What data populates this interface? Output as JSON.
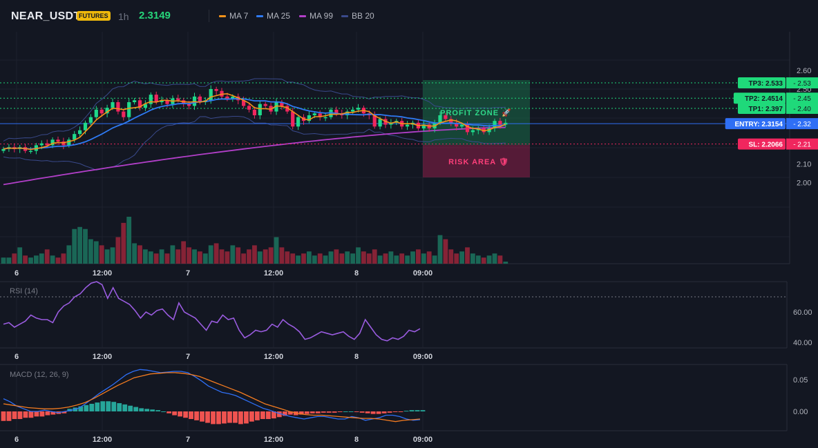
{
  "header": {
    "symbol": "NEAR_USDT",
    "badge": "FUTURES",
    "timeframe": "1h",
    "last_price": "2.3149",
    "legend": [
      {
        "label": "MA 7",
        "color": "#f7931a"
      },
      {
        "label": "MA 25",
        "color": "#2f7bf5"
      },
      {
        "label": "MA 99",
        "color": "#b23fc9"
      },
      {
        "label": "BB 20",
        "color": "#3a4a8c"
      }
    ]
  },
  "main_chart": {
    "price_axis": {
      "min": 1.92,
      "max": 2.66,
      "ticks": [
        "2.60",
        "2.50",
        "2.10",
        "2.00"
      ]
    },
    "levels": [
      {
        "name": "tp3",
        "label": "TP3: 2.533",
        "axis_value": "2.53",
        "price": 2.533,
        "color": "#1fd97a"
      },
      {
        "name": "tp2",
        "label": "TP2: 2.4514",
        "axis_value": "2.45",
        "price": 2.4514,
        "color": "#1fd97a"
      },
      {
        "name": "tp1",
        "label": "TP1: 2.397",
        "axis_value": "2.40",
        "price": 2.397,
        "color": "#1fd97a"
      },
      {
        "name": "entry",
        "label": "ENTRY: 2.3154",
        "axis_value": "2.32",
        "price": 2.3154,
        "color": "#2f6ff5"
      },
      {
        "name": "sl",
        "label": "SL: 2.2066",
        "axis_value": "2.21",
        "price": 2.2066,
        "color": "#f0265e"
      }
    ],
    "profit_zone_label": "PROFIT ZONE 🚀",
    "risk_area_label": "RISK AREA 🛡",
    "candles_close": [
      2.18,
      2.19,
      2.18,
      2.19,
      2.17,
      2.17,
      2.2,
      2.21,
      2.2,
      2.23,
      2.22,
      2.2,
      2.23,
      2.26,
      2.28,
      2.32,
      2.35,
      2.39,
      2.37,
      2.4,
      2.43,
      2.38,
      2.35,
      2.43,
      2.44,
      2.4,
      2.42,
      2.47,
      2.43,
      2.44,
      2.42,
      2.45,
      2.44,
      2.42,
      2.41,
      2.46,
      2.43,
      2.44,
      2.5,
      2.49,
      2.46,
      2.45,
      2.46,
      2.44,
      2.41,
      2.39,
      2.36,
      2.42,
      2.41,
      2.38,
      2.43,
      2.41,
      2.38,
      2.3,
      2.35,
      2.33,
      2.36,
      2.37,
      2.35,
      2.35,
      2.39,
      2.37,
      2.36,
      2.38,
      2.39,
      2.4,
      2.37,
      2.36,
      2.3,
      2.34,
      2.31,
      2.32,
      2.33,
      2.3,
      2.31,
      2.32,
      2.29,
      2.31,
      2.29,
      2.32,
      2.36,
      2.34,
      2.32,
      2.3,
      2.31,
      2.27,
      2.28,
      2.29,
      2.27,
      2.29,
      2.33,
      2.31,
      2.32
    ],
    "volume": [
      3,
      3,
      5,
      8,
      4,
      3,
      4,
      5,
      7,
      4,
      3,
      5,
      9,
      17,
      18,
      17,
      12,
      11,
      9,
      7,
      8,
      13,
      20,
      23,
      10,
      9,
      7,
      6,
      5,
      7,
      5,
      9,
      7,
      11,
      8,
      7,
      6,
      5,
      9,
      10,
      7,
      6,
      9,
      8,
      5,
      7,
      9,
      6,
      7,
      8,
      13,
      8,
      6,
      5,
      4,
      5,
      6,
      4,
      5,
      4,
      6,
      7,
      5,
      6,
      5,
      8,
      6,
      5,
      7,
      4,
      5,
      6,
      4,
      5,
      4,
      6,
      7,
      5,
      6,
      4,
      14,
      12,
      7,
      5,
      6,
      8,
      5,
      4,
      3,
      4,
      5,
      4,
      1
    ],
    "x_labels": [
      {
        "t": "6",
        "i": 2
      },
      {
        "t": "12:00",
        "i": 17
      },
      {
        "t": "7",
        "i": 33
      },
      {
        "t": "12:00",
        "i": 48
      },
      {
        "t": "8",
        "i": 63
      },
      {
        "t": "09:00",
        "i": 75
      }
    ]
  },
  "rsi_panel": {
    "title": "RSI (14)",
    "ticks": [
      "60.00",
      "40.00"
    ],
    "range": [
      35,
      80
    ],
    "overbought": 70,
    "values": [
      52,
      53,
      50,
      52,
      54,
      58,
      56,
      55,
      55,
      53,
      60,
      64,
      66,
      70,
      72,
      76,
      79,
      80,
      78,
      69,
      76,
      69,
      67,
      65,
      61,
      56,
      60,
      58,
      61,
      62,
      58,
      55,
      66,
      60,
      58,
      56,
      52,
      48,
      54,
      53,
      58,
      55,
      56,
      48,
      43,
      45,
      48,
      47,
      48,
      52,
      50,
      55,
      52,
      50,
      47,
      42,
      43,
      45,
      47,
      46,
      45,
      46,
      47,
      44,
      42,
      46,
      55,
      50,
      45,
      42,
      41,
      43,
      42,
      44,
      48,
      47,
      49
    ]
  },
  "macd_panel": {
    "title": "MACD (12, 26, 9)",
    "ticks": [
      "0.05",
      "0.00"
    ],
    "range": [
      -0.035,
      0.075
    ],
    "macd": [
      0.02,
      0.015,
      0.008,
      0.004,
      0.0,
      0.0,
      0.002,
      0.0,
      -0.002,
      0.0,
      0.002,
      0.005,
      0.012,
      0.02,
      0.028,
      0.035,
      0.042,
      0.05,
      0.058,
      0.063,
      0.066,
      0.065,
      0.063,
      0.061,
      0.062,
      0.063,
      0.063,
      0.061,
      0.055,
      0.048,
      0.04,
      0.035,
      0.03,
      0.028,
      0.025,
      0.02,
      0.015,
      0.01,
      0.005,
      0.002,
      -0.002,
      -0.005,
      -0.008,
      -0.01,
      -0.012,
      -0.01,
      -0.008,
      -0.008,
      -0.01,
      -0.012,
      -0.012,
      -0.008,
      -0.01,
      -0.014,
      -0.012,
      -0.01,
      -0.006,
      -0.006,
      -0.008,
      -0.012,
      -0.014,
      -0.013
    ],
    "signal": [
      0.012,
      0.01,
      0.008,
      0.006,
      0.005,
      0.004,
      0.004,
      0.005,
      0.007,
      0.01,
      0.014,
      0.02,
      0.027,
      0.034,
      0.041,
      0.047,
      0.053,
      0.056,
      0.059,
      0.06,
      0.061,
      0.061,
      0.06,
      0.058,
      0.055,
      0.05,
      0.045,
      0.04,
      0.035,
      0.03,
      0.024,
      0.018,
      0.012,
      0.008,
      0.004,
      0.0,
      -0.003,
      -0.005,
      -0.006,
      -0.006,
      -0.007,
      -0.008,
      -0.009,
      -0.01,
      -0.011,
      -0.011,
      -0.012,
      -0.014,
      -0.016,
      -0.014,
      -0.013,
      -0.012
    ],
    "histogram": [
      -0.015,
      -0.015,
      -0.012,
      -0.012,
      -0.01,
      -0.01,
      -0.008,
      -0.008,
      -0.006,
      -0.005,
      -0.004,
      -0.003,
      0.004,
      0.006,
      0.008,
      0.01,
      0.012,
      0.014,
      0.016,
      0.016,
      0.015,
      0.013,
      0.011,
      0.009,
      0.007,
      0.005,
      0.004,
      0.003,
      0.002,
      0.0,
      -0.003,
      -0.006,
      -0.008,
      -0.01,
      -0.012,
      -0.014,
      -0.016,
      -0.018,
      -0.02,
      -0.02,
      -0.019,
      -0.018,
      -0.018,
      -0.02,
      -0.019,
      -0.016,
      -0.014,
      -0.012,
      -0.012,
      -0.011,
      -0.009,
      -0.007,
      -0.005,
      -0.006,
      -0.005,
      -0.004,
      -0.003,
      -0.003,
      -0.002,
      -0.002,
      -0.002,
      -0.001,
      0.0,
      0.0,
      -0.001,
      -0.002,
      -0.003,
      -0.004,
      -0.004,
      -0.003,
      -0.002,
      -0.001,
      -0.001,
      0.001,
      0.002,
      0.002,
      0.002
    ]
  }
}
